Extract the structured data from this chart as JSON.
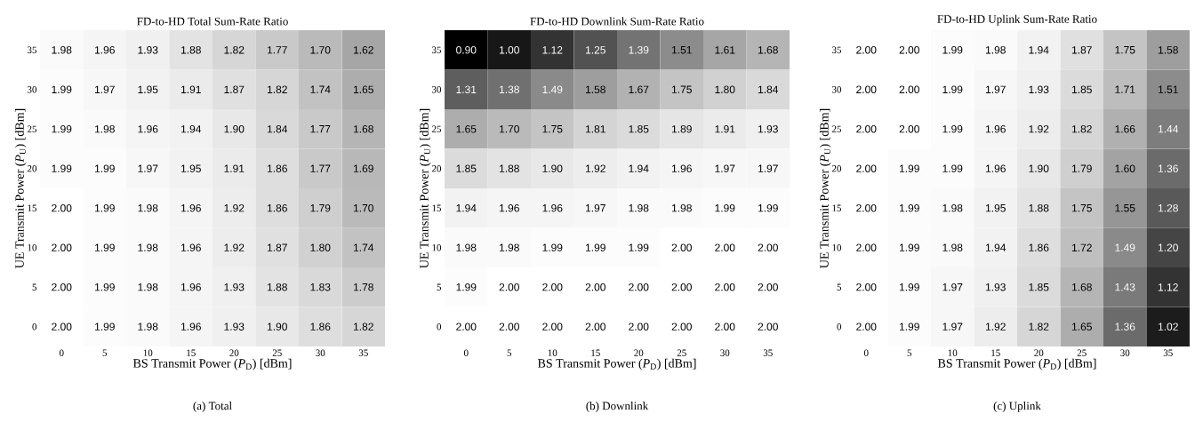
{
  "chart_data": [
    {
      "type": "heatmap",
      "title": "FD-to-HD Total Sum-Rate Ratio",
      "xlabel": "BS Transmit Power (*P*$_{D}$) [dBm]",
      "ylabel": "UE Transmit Power (*P*$_{U}$) [dBm]",
      "categories": [
        "0",
        "5",
        "10",
        "15",
        "20",
        "25",
        "30",
        "35"
      ],
      "y_categories": [
        "35",
        "30",
        "25",
        "20",
        "15",
        "10",
        "5",
        "0"
      ],
      "cells": [
        [
          1.98,
          1.96,
          1.93,
          1.88,
          1.82,
          1.77,
          1.7,
          1.62
        ],
        [
          1.99,
          1.97,
          1.95,
          1.91,
          1.87,
          1.82,
          1.74,
          1.65
        ],
        [
          1.99,
          1.98,
          1.96,
          1.94,
          1.9,
          1.84,
          1.77,
          1.68
        ],
        [
          1.99,
          1.99,
          1.97,
          1.95,
          1.91,
          1.86,
          1.77,
          1.69
        ],
        [
          2.0,
          1.99,
          1.98,
          1.96,
          1.92,
          1.86,
          1.79,
          1.7
        ],
        [
          2.0,
          1.99,
          1.98,
          1.96,
          1.92,
          1.87,
          1.8,
          1.74
        ],
        [
          2.0,
          1.99,
          1.98,
          1.96,
          1.93,
          1.88,
          1.83,
          1.78
        ],
        [
          2.0,
          1.99,
          1.98,
          1.96,
          1.93,
          1.9,
          1.86,
          1.82
        ]
      ],
      "cell_labels": [
        [
          "1.98",
          "1.96",
          "1.93",
          "1.88",
          "1.82",
          "1.77",
          "1.70",
          "1.62"
        ],
        [
          "1.99",
          "1.97",
          "1.95",
          "1.91",
          "1.87",
          "1.82",
          "1.74",
          "1.65"
        ],
        [
          "1.99",
          "1.98",
          "1.96",
          "1.94",
          "1.90",
          "1.84",
          "1.77",
          "1.68"
        ],
        [
          "1.99",
          "1.99",
          "1.97",
          "1.95",
          "1.91",
          "1.86",
          "1.77",
          "1.69"
        ],
        [
          "2.00",
          "1.99",
          "1.98",
          "1.96",
          "1.92",
          "1.86",
          "1.79",
          "1.70"
        ],
        [
          "2.00",
          "1.99",
          "1.98",
          "1.96",
          "1.92",
          "1.87",
          "1.80",
          "1.74"
        ],
        [
          "2.00",
          "1.99",
          "1.98",
          "1.96",
          "1.93",
          "1.88",
          "1.83",
          "1.78"
        ],
        [
          "2.00",
          "1.99",
          "1.98",
          "1.96",
          "1.93",
          "1.90",
          "1.86",
          "1.82"
        ]
      ],
      "data_labels": true,
      "annotations": [
        "(a) Total"
      ]
    },
    {
      "type": "heatmap",
      "title": "FD-to-HD Downlink Sum-Rate Ratio",
      "xlabel": "BS Transmit Power (*P*$_{D}$) [dBm]",
      "ylabel": "UE Transmit Power (*P*$_{U}$) [dBm]",
      "categories": [
        "0",
        "5",
        "10",
        "15",
        "20",
        "25",
        "30",
        "35"
      ],
      "y_categories": [
        "35",
        "30",
        "25",
        "20",
        "15",
        "10",
        "5",
        "0"
      ],
      "cells": [
        [
          0.9,
          1.0,
          1.12,
          1.25,
          1.39,
          1.51,
          1.61,
          1.68
        ],
        [
          1.31,
          1.38,
          1.49,
          1.58,
          1.67,
          1.75,
          1.8,
          1.84
        ],
        [
          1.65,
          1.7,
          1.75,
          1.81,
          1.85,
          1.89,
          1.91,
          1.93
        ],
        [
          1.85,
          1.88,
          1.9,
          1.92,
          1.94,
          1.96,
          1.97,
          1.97
        ],
        [
          1.94,
          1.96,
          1.96,
          1.97,
          1.98,
          1.98,
          1.99,
          1.99
        ],
        [
          1.98,
          1.98,
          1.99,
          1.99,
          1.99,
          2.0,
          2.0,
          2.0
        ],
        [
          1.99,
          2.0,
          2.0,
          2.0,
          2.0,
          2.0,
          2.0,
          2.0
        ],
        [
          2.0,
          2.0,
          2.0,
          2.0,
          2.0,
          2.0,
          2.0,
          2.0
        ]
      ],
      "cell_labels": [
        [
          "0.90",
          "1.00",
          "1.12",
          "1.25",
          "1.39",
          "1.51",
          "1.61",
          "1.68"
        ],
        [
          "1.31",
          "1.38",
          "1.49",
          "1.58",
          "1.67",
          "1.75",
          "1.80",
          "1.84"
        ],
        [
          "1.65",
          "1.70",
          "1.75",
          "1.81",
          "1.85",
          "1.89",
          "1.91",
          "1.93"
        ],
        [
          "1.85",
          "1.88",
          "1.90",
          "1.92",
          "1.94",
          "1.96",
          "1.97",
          "1.97"
        ],
        [
          "1.94",
          "1.96",
          "1.96",
          "1.97",
          "1.98",
          "1.98",
          "1.99",
          "1.99"
        ],
        [
          "1.98",
          "1.98",
          "1.99",
          "1.99",
          "1.99",
          "2.00",
          "2.00",
          "2.00"
        ],
        [
          "1.99",
          "2.00",
          "2.00",
          "2.00",
          "2.00",
          "2.00",
          "2.00",
          "2.00"
        ],
        [
          "2.00",
          "2.00",
          "2.00",
          "2.00",
          "2.00",
          "2.00",
          "2.00",
          "2.00"
        ]
      ],
      "data_labels": true,
      "annotations": [
        "(b) Downlink"
      ]
    },
    {
      "type": "heatmap",
      "title": "FD-to-HD Uplink Sum-Rate Ratio",
      "xlabel": "BS Transmit Power (*P*$_{D}$) [dBm]",
      "ylabel": "UE Transmit Power (*P*$_{U}$) [dBm]",
      "categories": [
        "0",
        "5",
        "10",
        "15",
        "20",
        "25",
        "30",
        "35"
      ],
      "y_categories": [
        "35",
        "30",
        "25",
        "20",
        "15",
        "10",
        "5",
        "0"
      ],
      "cells": [
        [
          2.0,
          2.0,
          1.99,
          1.98,
          1.94,
          1.87,
          1.75,
          1.58
        ],
        [
          2.0,
          2.0,
          1.99,
          1.97,
          1.93,
          1.85,
          1.71,
          1.51
        ],
        [
          2.0,
          2.0,
          1.99,
          1.96,
          1.92,
          1.82,
          1.66,
          1.44
        ],
        [
          2.0,
          1.99,
          1.99,
          1.96,
          1.9,
          1.79,
          1.6,
          1.36
        ],
        [
          2.0,
          1.99,
          1.98,
          1.95,
          1.88,
          1.75,
          1.55,
          1.28
        ],
        [
          2.0,
          1.99,
          1.98,
          1.94,
          1.86,
          1.72,
          1.49,
          1.2
        ],
        [
          2.0,
          1.99,
          1.97,
          1.93,
          1.85,
          1.68,
          1.43,
          1.12
        ],
        [
          2.0,
          1.99,
          1.97,
          1.92,
          1.82,
          1.65,
          1.36,
          1.02
        ]
      ],
      "cell_labels": [
        [
          "2.00",
          "2.00",
          "1.99",
          "1.98",
          "1.94",
          "1.87",
          "1.75",
          "1.58"
        ],
        [
          "2.00",
          "2.00",
          "1.99",
          "1.97",
          "1.93",
          "1.85",
          "1.71",
          "1.51"
        ],
        [
          "2.00",
          "2.00",
          "1.99",
          "1.96",
          "1.92",
          "1.82",
          "1.66",
          "1.44"
        ],
        [
          "2.00",
          "1.99",
          "1.99",
          "1.96",
          "1.90",
          "1.79",
          "1.60",
          "1.36"
        ],
        [
          "2.00",
          "1.99",
          "1.98",
          "1.95",
          "1.88",
          "1.75",
          "1.55",
          "1.28"
        ],
        [
          "2.00",
          "1.99",
          "1.98",
          "1.94",
          "1.86",
          "1.72",
          "1.49",
          "1.20"
        ],
        [
          "2.00",
          "1.99",
          "1.97",
          "1.93",
          "1.85",
          "1.68",
          "1.43",
          "1.12"
        ],
        [
          "2.00",
          "1.99",
          "1.97",
          "1.92",
          "1.82",
          "1.65",
          "1.36",
          "1.02"
        ]
      ],
      "data_labels": true,
      "annotations": [
        "(c) Uplink"
      ]
    }
  ]
}
